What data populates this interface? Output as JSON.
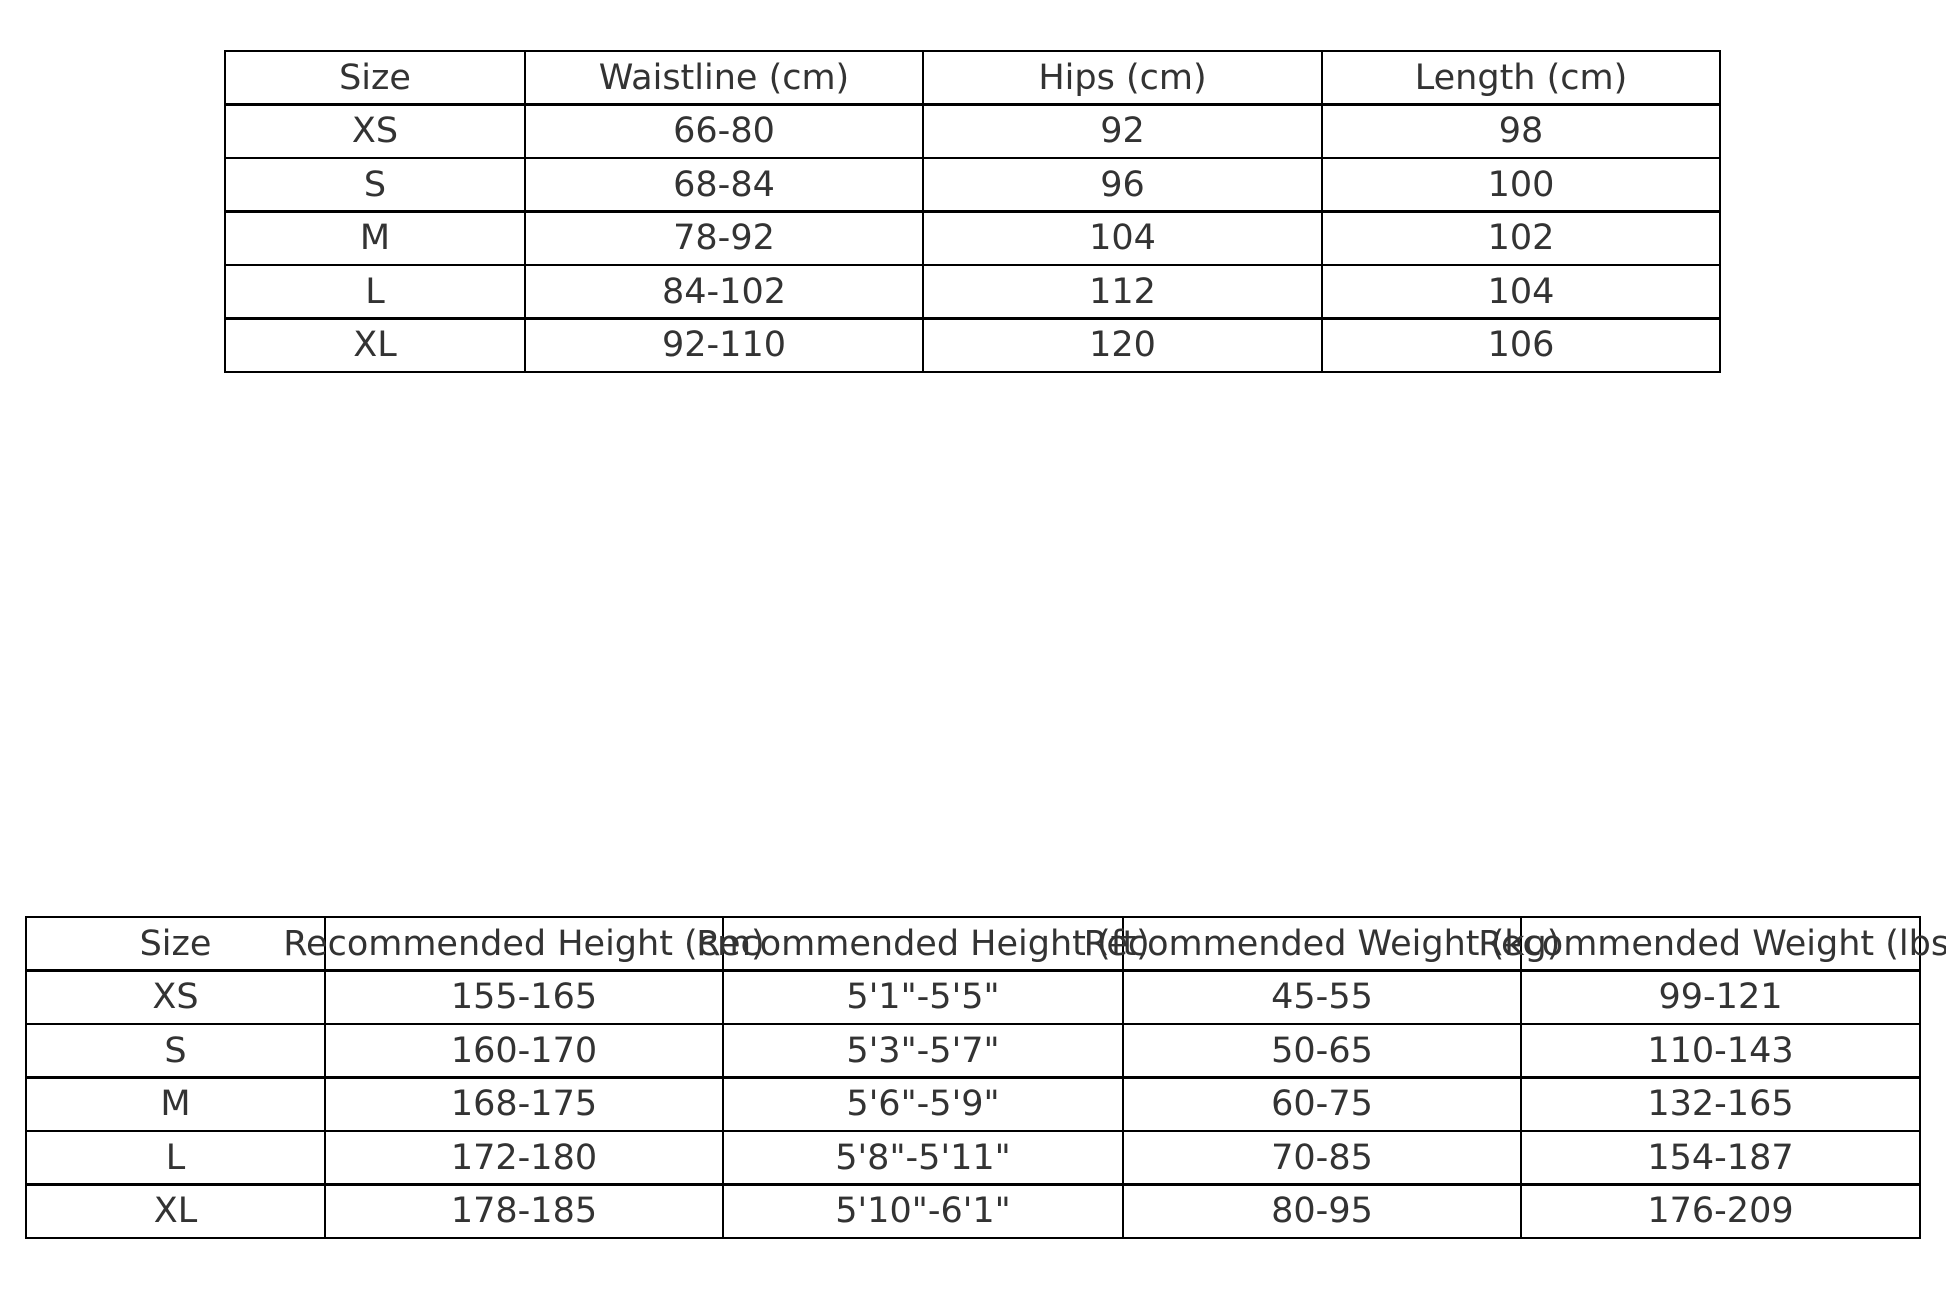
{
  "tables": [
    {
      "headers": [
        "Size",
        "Waistline (cm)",
        "Hips (cm)",
        "Length (cm)"
      ],
      "rows": [
        [
          "XS",
          "66-80",
          "92",
          "98"
        ],
        [
          "S",
          "68-84",
          "96",
          "100"
        ],
        [
          "M",
          "78-92",
          "104",
          "102"
        ],
        [
          "L",
          "84-102",
          "112",
          "104"
        ],
        [
          "XL",
          "92-110",
          "120",
          "106"
        ]
      ]
    },
    {
      "headers": [
        "Size",
        "Recommended Height (cm)",
        "Recommended Height (ft)",
        "Recommended Weight (kg)",
        "Recommended Weight (lbs)"
      ],
      "rows": [
        [
          "XS",
          "155-165",
          "5'1\"-5'5\"",
          "45-55",
          "99-121"
        ],
        [
          "S",
          "160-170",
          "5'3\"-5'7\"",
          "50-65",
          "110-143"
        ],
        [
          "M",
          "168-175",
          "5'6\"-5'9\"",
          "60-75",
          "132-165"
        ],
        [
          "L",
          "172-180",
          "5'8\"-5'11\"",
          "70-85",
          "154-187"
        ],
        [
          "XL",
          "178-185",
          "5'10\"-6'1\"",
          "80-95",
          "176-209"
        ]
      ]
    }
  ]
}
